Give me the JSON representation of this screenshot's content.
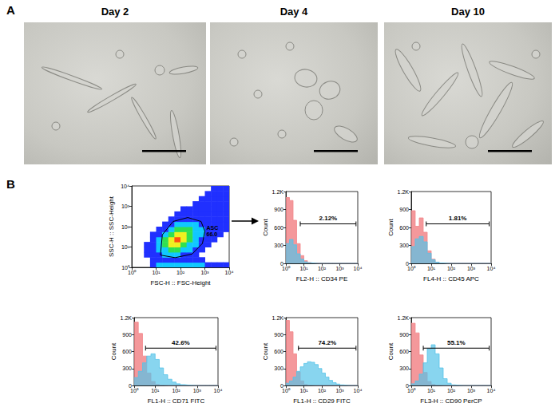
{
  "panels": [
    {
      "label": "A",
      "micrographs": [
        {
          "title": "Day 2"
        },
        {
          "title": "Day 4"
        },
        {
          "title": "Day 10"
        }
      ]
    },
    {
      "label": "B"
    }
  ],
  "chart_data": [
    {
      "type": "density",
      "log": true,
      "x_label": "FSC-H :: FSC-Height",
      "y_label": "SSC-H :: SSC-Height",
      "xlim": [
        1,
        10000
      ],
      "ylim": [
        1,
        10000
      ],
      "xticks": [
        {
          "value": 1,
          "label": "10⁰"
        },
        {
          "value": 10,
          "label": "10¹"
        },
        {
          "value": 100,
          "label": "10²"
        },
        {
          "value": 1000,
          "label": "10³"
        },
        {
          "value": 10000,
          "label": "10⁴"
        }
      ],
      "yticks": [
        {
          "value": 1,
          "label": "10⁰"
        },
        {
          "value": 10,
          "label": "10¹"
        },
        {
          "value": 100,
          "label": "10²"
        },
        {
          "value": 1000,
          "label": "10³"
        },
        {
          "value": 10000,
          "label": "10⁴"
        }
      ],
      "density": {
        "x_edges": [
          1,
          1.78,
          3.16,
          5.62,
          10,
          17.8,
          31.6,
          56.2,
          100,
          178,
          316,
          562,
          1000,
          1780,
          3160,
          5620,
          10000
        ],
        "y_edges": [
          1,
          1.78,
          3.16,
          5.62,
          10,
          17.8,
          31.6,
          56.2,
          100,
          178,
          316,
          562,
          1000,
          1780,
          3160,
          5620,
          10000
        ],
        "cells": [
          [
            0,
            0,
            0,
            1,
            2,
            2,
            2,
            2,
            2,
            2,
            2,
            2,
            1,
            1,
            1,
            1
          ],
          [
            0,
            0,
            0,
            1,
            1,
            1,
            1,
            1,
            1,
            1,
            1,
            1,
            0,
            0,
            0,
            0
          ],
          [
            0,
            0,
            1,
            1,
            1,
            2,
            2,
            2,
            1,
            1,
            1,
            0,
            0,
            0,
            0,
            0
          ],
          [
            0,
            0,
            1,
            1,
            2,
            2,
            3,
            3,
            2,
            2,
            1,
            1,
            0,
            0,
            0,
            0
          ],
          [
            0,
            0,
            1,
            1,
            2,
            3,
            4,
            4,
            3,
            2,
            2,
            1,
            1,
            0,
            0,
            0
          ],
          [
            0,
            0,
            0,
            1,
            2,
            3,
            4,
            5,
            4,
            3,
            2,
            1,
            1,
            1,
            0,
            0
          ],
          [
            0,
            0,
            0,
            1,
            1,
            2,
            3,
            4,
            4,
            3,
            2,
            2,
            1,
            1,
            1,
            0
          ],
          [
            0,
            0,
            0,
            0,
            1,
            1,
            2,
            3,
            3,
            3,
            2,
            2,
            1,
            1,
            1,
            1
          ],
          [
            0,
            0,
            0,
            0,
            0,
            1,
            1,
            2,
            2,
            2,
            2,
            1,
            1,
            1,
            1,
            1
          ],
          [
            0,
            0,
            0,
            0,
            0,
            0,
            1,
            1,
            1,
            1,
            1,
            1,
            1,
            1,
            1,
            1
          ],
          [
            0,
            0,
            0,
            0,
            0,
            0,
            0,
            1,
            1,
            1,
            1,
            1,
            1,
            1,
            1,
            1
          ],
          [
            0,
            0,
            0,
            0,
            0,
            0,
            0,
            0,
            1,
            1,
            1,
            1,
            1,
            1,
            1,
            1
          ],
          [
            0,
            0,
            0,
            0,
            0,
            0,
            0,
            0,
            0,
            0,
            1,
            1,
            1,
            1,
            1,
            1
          ],
          [
            0,
            0,
            0,
            0,
            0,
            0,
            0,
            0,
            0,
            0,
            0,
            1,
            1,
            1,
            1,
            1
          ],
          [
            0,
            0,
            0,
            0,
            0,
            0,
            0,
            0,
            0,
            0,
            0,
            0,
            1,
            1,
            1,
            1
          ],
          [
            0,
            0,
            0,
            0,
            0,
            0,
            0,
            0,
            0,
            0,
            0,
            0,
            0,
            1,
            1,
            1
          ]
        ],
        "colors": [
          "#2030ff",
          "#10c8ff",
          "#30e050",
          "#f0f020",
          "#ff5010"
        ]
      },
      "gate": {
        "name": "ASC",
        "label": "66.0",
        "polygon": [
          [
            15,
            4
          ],
          [
            60,
            3
          ],
          [
            300,
            4.5
          ],
          [
            800,
            15
          ],
          [
            1000,
            60
          ],
          [
            700,
            180
          ],
          [
            200,
            280
          ],
          [
            50,
            180
          ],
          [
            18,
            40
          ]
        ]
      }
    },
    {
      "type": "histogram",
      "log": "x",
      "x_label": "FL2-H :: CD34 PE",
      "y_label": "Count",
      "xlim": [
        1,
        10000
      ],
      "ylim": [
        0,
        1200
      ],
      "xticks": [
        {
          "value": 1,
          "label": "10⁰"
        },
        {
          "value": 10,
          "label": "10¹"
        },
        {
          "value": 100,
          "label": "10²"
        },
        {
          "value": 1000,
          "label": "10³"
        },
        {
          "value": 10000,
          "label": "10⁴"
        }
      ],
      "yticks": [
        0,
        300,
        600,
        900,
        {
          "value": 1200,
          "label": "1.2K"
        }
      ],
      "bins": [
        1,
        1.58,
        2.51,
        3.98,
        6.31,
        10,
        15.8,
        25.1,
        39.8,
        63.1,
        100,
        158,
        251,
        398,
        631,
        1000,
        1580,
        2510,
        3980,
        6310,
        10000
      ],
      "series": [
        {
          "color": "#f2868a",
          "values": [
            1100,
            1050,
            720,
            330,
            130,
            45,
            15,
            5,
            2,
            0,
            0,
            0,
            0,
            0,
            0,
            0,
            0,
            0,
            0,
            0
          ]
        },
        {
          "color": "#55c3e8",
          "values": [
            330,
            400,
            310,
            160,
            70,
            25,
            10,
            4,
            1,
            0,
            0,
            0,
            0,
            0,
            0,
            0,
            0,
            0,
            0,
            0
          ]
        }
      ],
      "gate": {
        "range": [
          6.3,
          8000
        ],
        "label": "2.12%"
      }
    },
    {
      "type": "histogram",
      "log": "x",
      "x_label": "FL4-H :: CD45 APC",
      "y_label": "Count",
      "xlim": [
        1,
        10000
      ],
      "ylim": [
        0,
        1200
      ],
      "xticks": [
        {
          "value": 1,
          "label": "10⁰"
        },
        {
          "value": 10,
          "label": "10¹"
        },
        {
          "value": 100,
          "label": "10²"
        },
        {
          "value": 1000,
          "label": "10³"
        },
        {
          "value": 10000,
          "label": "10⁴"
        }
      ],
      "yticks": [
        0,
        300,
        600,
        900,
        {
          "value": 1200,
          "label": "1.2K"
        }
      ],
      "bins": [
        1,
        1.58,
        2.51,
        3.98,
        6.31,
        10,
        15.8,
        25.1,
        39.8,
        63.1,
        100,
        158,
        251,
        398,
        631,
        1000,
        1580,
        2510,
        3980,
        6310,
        10000
      ],
      "series": [
        {
          "color": "#f2868a",
          "values": [
            880,
            620,
            760,
            520,
            210,
            70,
            20,
            5,
            1,
            0,
            0,
            0,
            0,
            0,
            0,
            0,
            0,
            0,
            0,
            0
          ]
        },
        {
          "color": "#55c3e8",
          "values": [
            280,
            410,
            450,
            360,
            170,
            60,
            20,
            7,
            2,
            0,
            0,
            0,
            0,
            0,
            0,
            0,
            0,
            0,
            0,
            0
          ]
        }
      ],
      "gate": {
        "range": [
          5.6,
          8000
        ],
        "label": "1.81%"
      }
    },
    {
      "type": "histogram",
      "log": "x",
      "x_label": "FL1-H :: CD71 FITC",
      "y_label": "Count",
      "xlim": [
        1,
        10000
      ],
      "ylim": [
        0,
        1200
      ],
      "xticks": [
        {
          "value": 1,
          "label": "10⁰"
        },
        {
          "value": 10,
          "label": "10¹"
        },
        {
          "value": 100,
          "label": "10²"
        },
        {
          "value": 1000,
          "label": "10³"
        },
        {
          "value": 10000,
          "label": "10⁴"
        }
      ],
      "yticks": [
        0,
        300,
        600,
        900,
        {
          "value": 1200,
          "label": "1.2K"
        }
      ],
      "bins": [
        1,
        1.58,
        2.51,
        3.98,
        6.31,
        10,
        15.8,
        25.1,
        39.8,
        63.1,
        100,
        158,
        251,
        398,
        631,
        1000,
        1580,
        2510,
        3980,
        6310,
        10000
      ],
      "series": [
        {
          "color": "#f2868a",
          "values": [
            1120,
            920,
            520,
            220,
            70,
            20,
            5,
            1,
            0,
            0,
            0,
            0,
            0,
            0,
            0,
            0,
            0,
            0,
            0,
            0
          ]
        },
        {
          "color": "#55c3e8",
          "values": [
            140,
            250,
            400,
            520,
            560,
            460,
            310,
            190,
            110,
            60,
            30,
            15,
            6,
            2,
            0,
            0,
            0,
            0,
            0,
            0
          ]
        }
      ],
      "gate": {
        "range": [
          3.5,
          8000
        ],
        "label": "42.6%"
      }
    },
    {
      "type": "histogram",
      "log": "x",
      "x_label": "FL1-H :: CD29 FITC",
      "y_label": "Count",
      "xlim": [
        1,
        10000
      ],
      "ylim": [
        0,
        1200
      ],
      "xticks": [
        {
          "value": 1,
          "label": "10⁰"
        },
        {
          "value": 10,
          "label": "10¹"
        },
        {
          "value": 100,
          "label": "10²"
        },
        {
          "value": 1000,
          "label": "10³"
        },
        {
          "value": 10000,
          "label": "10⁴"
        }
      ],
      "yticks": [
        0,
        300,
        600,
        900,
        {
          "value": 1200,
          "label": "1.2K"
        }
      ],
      "bins": [
        1,
        1.58,
        2.51,
        3.98,
        6.31,
        10,
        15.8,
        25.1,
        39.8,
        63.1,
        100,
        158,
        251,
        398,
        631,
        1000,
        1580,
        2510,
        3980,
        6310,
        10000
      ],
      "series": [
        {
          "color": "#f2868a",
          "values": [
            1150,
            950,
            560,
            240,
            80,
            20,
            5,
            1,
            0,
            0,
            0,
            0,
            0,
            0,
            0,
            0,
            0,
            0,
            0,
            0
          ]
        },
        {
          "color": "#55c3e8",
          "values": [
            40,
            80,
            150,
            250,
            330,
            390,
            420,
            410,
            370,
            300,
            220,
            150,
            90,
            50,
            25,
            10,
            4,
            1,
            0,
            0
          ]
        }
      ],
      "gate": {
        "range": [
          5,
          8000
        ],
        "label": "74.2%"
      }
    },
    {
      "type": "histogram",
      "log": "x",
      "x_label": "FL3-H :: CD90 PerCP",
      "y_label": "Count",
      "xlim": [
        1,
        10000
      ],
      "ylim": [
        0,
        1200
      ],
      "xticks": [
        {
          "value": 1,
          "label": "10⁰"
        },
        {
          "value": 10,
          "label": "10¹"
        },
        {
          "value": 100,
          "label": "10²"
        },
        {
          "value": 1000,
          "label": "10³"
        },
        {
          "value": 10000,
          "label": "10⁴"
        }
      ],
      "yticks": [
        0,
        300,
        600,
        900,
        {
          "value": 1200,
          "label": "1.2K"
        }
      ],
      "bins": [
        1,
        1.58,
        2.51,
        3.98,
        6.31,
        10,
        15.8,
        25.1,
        39.8,
        63.1,
        100,
        158,
        251,
        398,
        631,
        1000,
        1580,
        2510,
        3980,
        6310,
        10000
      ],
      "series": [
        {
          "color": "#f2868a",
          "values": [
            1100,
            930,
            540,
            230,
            70,
            20,
            5,
            1,
            0,
            0,
            0,
            0,
            0,
            0,
            0,
            0,
            0,
            0,
            0,
            0
          ]
        },
        {
          "color": "#55c3e8",
          "values": [
            30,
            80,
            200,
            400,
            650,
            720,
            560,
            310,
            120,
            40,
            10,
            3,
            0,
            0,
            0,
            0,
            0,
            0,
            0,
            0
          ]
        }
      ],
      "gate": {
        "range": [
          4,
          8000
        ],
        "label": "55.1%"
      }
    }
  ]
}
